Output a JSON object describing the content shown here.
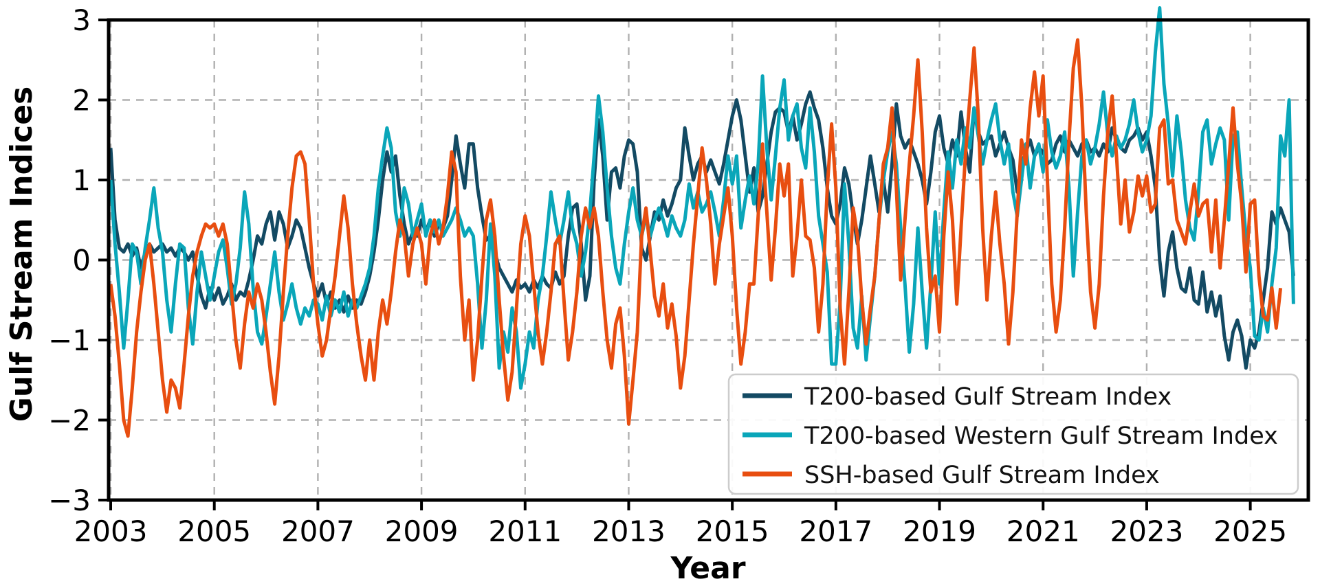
{
  "chart_data": {
    "type": "line",
    "title": "",
    "xlabel": "Year",
    "ylabel": "Gulf Stream Indices",
    "xlim": [
      2002.96,
      2026.12
    ],
    "ylim": [
      -3,
      3
    ],
    "xticks": [
      2003,
      2005,
      2007,
      2009,
      2011,
      2013,
      2015,
      2017,
      2019,
      2021,
      2023,
      2025
    ],
    "yticks": [
      -3,
      -2,
      -1,
      0,
      1,
      2,
      3
    ],
    "grid": true,
    "grid_style": "dashed",
    "legend_position": "lower right",
    "x_start_year": 2003.0,
    "x_step_years": 0.0833333,
    "series": [
      {
        "name": "T200-based Gulf Stream Index",
        "color": "#134a63",
        "values": [
          1.4,
          0.5,
          0.15,
          0.1,
          0.2,
          0.05,
          0.15,
          -0.1,
          0.1,
          0.2,
          0.1,
          0.15,
          0.2,
          0.1,
          0.15,
          0.05,
          0.15,
          0.1,
          0.0,
          0.1,
          -0.2,
          -0.45,
          -0.6,
          -0.35,
          -0.5,
          -0.35,
          -0.55,
          -0.45,
          -0.3,
          -0.5,
          -0.4,
          -0.45,
          -0.25,
          0.0,
          0.3,
          0.2,
          0.45,
          0.6,
          0.25,
          0.6,
          0.45,
          0.15,
          0.3,
          0.5,
          0.4,
          0.15,
          -0.1,
          -0.3,
          -0.45,
          -0.3,
          -0.55,
          -0.4,
          -0.6,
          -0.5,
          -0.65,
          -0.45,
          -0.6,
          -0.5,
          -0.55,
          -0.4,
          -0.2,
          0.1,
          0.5,
          1.0,
          1.35,
          1.1,
          1.3,
          0.8,
          0.45,
          0.2,
          0.35,
          0.3,
          0.5,
          0.35,
          0.5,
          0.3,
          0.45,
          0.4,
          0.55,
          1.0,
          1.55,
          1.2,
          0.9,
          1.45,
          1.45,
          0.9,
          0.55,
          0.25,
          0.3,
          0.1,
          -0.1,
          -0.2,
          -0.3,
          -0.4,
          -0.25,
          -0.35,
          -0.3,
          -0.4,
          -0.25,
          -0.35,
          -0.2,
          -0.3,
          -0.35,
          -0.15,
          -0.3,
          -0.2,
          0.3,
          0.65,
          0.7,
          0.2,
          -0.5,
          -0.2,
          1.0,
          1.75,
          1.3,
          0.5,
          1.1,
          1.15,
          0.9,
          1.3,
          1.5,
          1.45,
          1.1,
          0.15,
          0.0,
          0.3,
          0.6,
          0.5,
          0.75,
          0.55,
          0.7,
          0.9,
          1.0,
          1.65,
          1.3,
          1.0,
          1.2,
          1.3,
          1.1,
          1.25,
          1.1,
          0.95,
          1.2,
          1.5,
          1.8,
          2.0,
          1.75,
          1.3,
          0.85,
          1.15,
          0.6,
          0.8,
          1.2,
          1.6,
          1.85,
          1.9,
          1.85,
          1.6,
          1.8,
          1.5,
          1.7,
          1.95,
          2.1,
          1.9,
          1.75,
          1.4,
          0.9,
          0.55,
          0.45,
          0.7,
          1.15,
          0.95,
          0.55,
          0.2,
          0.5,
          0.9,
          1.3,
          0.95,
          0.6,
          1.0,
          0.6,
          1.2,
          1.95,
          1.55,
          1.4,
          1.5,
          1.35,
          1.2,
          1.0,
          0.7,
          1.1,
          1.6,
          1.8,
          1.4,
          1.2,
          1.5,
          1.3,
          1.85,
          1.4,
          1.1,
          1.9,
          1.6,
          1.45,
          1.5,
          1.55,
          1.3,
          1.45,
          1.6,
          1.4,
          1.25,
          0.85,
          1.2,
          1.35,
          1.5,
          1.3,
          1.4,
          1.35,
          1.2,
          1.25,
          1.45,
          1.55,
          1.35,
          1.5,
          1.4,
          1.3,
          1.45,
          1.5,
          1.35,
          1.4,
          1.3,
          1.45,
          1.35,
          1.65,
          1.5,
          1.4,
          1.35,
          1.5,
          1.55,
          1.65,
          1.5,
          1.6,
          1.3,
          0.9,
          0.0,
          -0.45,
          0.1,
          0.35,
          -0.1,
          -0.35,
          -0.4,
          -0.1,
          -0.5,
          -0.55,
          -0.15,
          -0.65,
          -0.4,
          -0.7,
          -0.45,
          -0.95,
          -1.25,
          -0.9,
          -0.75,
          -0.95,
          -1.35,
          -1.0,
          -1.1,
          -0.9,
          -0.5,
          -0.1,
          0.6,
          0.45,
          0.65,
          0.5,
          0.35,
          -0.2
        ]
      },
      {
        "name": "T200-based Western Gulf Stream Index",
        "color": "#0aa6b9",
        "values": [
          1.0,
          0.2,
          -0.4,
          -1.1,
          -0.5,
          0.2,
          0.1,
          -0.3,
          0.15,
          0.5,
          0.9,
          0.4,
          0.1,
          -0.5,
          -0.9,
          -0.3,
          0.2,
          0.15,
          -0.6,
          -1.05,
          -0.4,
          0.1,
          -0.2,
          -0.5,
          -0.2,
          0.1,
          0.25,
          -0.1,
          -0.55,
          -0.3,
          0.15,
          0.85,
          0.45,
          -0.35,
          -0.9,
          -1.05,
          -0.7,
          -0.3,
          0.1,
          -0.4,
          -0.75,
          -0.55,
          -0.3,
          -0.6,
          -0.8,
          -0.6,
          -0.7,
          -0.5,
          -0.55,
          -0.75,
          -0.45,
          -0.7,
          -0.5,
          -0.65,
          -0.4,
          -0.7,
          -0.5,
          -0.6,
          -0.45,
          -0.3,
          -0.1,
          0.3,
          0.9,
          1.3,
          1.65,
          1.4,
          0.6,
          0.3,
          0.9,
          0.7,
          0.3,
          0.5,
          0.7,
          0.3,
          0.5,
          0.35,
          0.5,
          0.3,
          0.4,
          0.5,
          0.65,
          0.5,
          0.3,
          0.4,
          0.3,
          -0.3,
          -1.1,
          -0.5,
          0.45,
          -0.2,
          -1.35,
          -0.9,
          -1.15,
          -0.6,
          -0.9,
          -1.6,
          -1.3,
          -0.9,
          -1.1,
          -0.5,
          -0.2,
          0.3,
          0.85,
          0.5,
          0.2,
          0.5,
          0.85,
          0.4,
          0.2,
          -0.2,
          0.1,
          0.6,
          1.3,
          2.05,
          1.6,
          0.9,
          0.3,
          -0.1,
          -0.3,
          0.2,
          0.6,
          0.9,
          0.5,
          0.3,
          0.55,
          0.3,
          0.5,
          0.65,
          0.5,
          0.3,
          0.55,
          0.4,
          0.3,
          0.5,
          0.95,
          0.65,
          0.85,
          0.6,
          0.7,
          0.85,
          0.6,
          0.3,
          0.75,
          1.3,
          0.95,
          1.3,
          0.4,
          0.75,
          1.05,
          0.7,
          1.2,
          2.3,
          1.4,
          0.75,
          1.3,
          1.9,
          2.25,
          1.5,
          1.8,
          1.95,
          1.4,
          1.15,
          1.9,
          1.35,
          0.55,
          0.2,
          -0.15,
          -1.3,
          -1.3,
          -0.5,
          0.95,
          0.2,
          -0.85,
          -1.1,
          -0.45,
          -1.25,
          -0.7,
          -0.2,
          0.5,
          1.0,
          1.35,
          1.6,
          1.2,
          0.4,
          -0.3,
          -1.15,
          -0.55,
          0.4,
          -0.4,
          -1.1,
          -0.3,
          0.6,
          -0.3,
          0.6,
          1.35,
          0.9,
          1.5,
          1.2,
          1.65,
          1.4,
          1.9,
          1.55,
          1.2,
          1.5,
          1.75,
          1.95,
          1.5,
          1.2,
          1.45,
          0.85,
          0.55,
          1.0,
          1.45,
          0.9,
          1.3,
          1.45,
          1.1,
          1.75,
          1.35,
          1.15,
          1.3,
          1.6,
          0.9,
          -0.2,
          0.6,
          1.3,
          1.5,
          1.2,
          1.4,
          1.7,
          2.1,
          1.55,
          1.3,
          1.55,
          1.4,
          1.5,
          1.7,
          2.0,
          1.6,
          1.35,
          1.5,
          1.8,
          2.6,
          3.15,
          2.2,
          1.7,
          1.05,
          1.8,
          1.35,
          0.75,
          0.4,
          0.25,
          0.85,
          1.6,
          1.75,
          1.2,
          1.45,
          1.65,
          1.5,
          0.5,
          1.55,
          1.6,
          0.9,
          0.3,
          -0.1,
          -0.95,
          -1.0,
          -0.6,
          -0.9,
          -0.3,
          0.15,
          1.55,
          1.3,
          2.0,
          -0.55
        ]
      },
      {
        "name": "SSH-based Gulf Stream Index",
        "color": "#e84e10",
        "values": [
          -0.3,
          -0.7,
          -1.3,
          -2.0,
          -2.2,
          -1.6,
          -0.9,
          -0.4,
          0.0,
          0.2,
          -0.3,
          -0.9,
          -1.5,
          -1.9,
          -1.5,
          -1.6,
          -1.85,
          -1.3,
          -0.7,
          -0.2,
          0.1,
          0.3,
          0.45,
          0.4,
          0.45,
          0.3,
          0.45,
          0.2,
          -0.4,
          -1.0,
          -1.35,
          -0.8,
          -0.4,
          -0.6,
          -0.3,
          -0.5,
          -0.9,
          -1.4,
          -1.8,
          -1.2,
          -0.4,
          0.3,
          0.9,
          1.3,
          1.35,
          1.2,
          0.5,
          -0.3,
          -0.8,
          -1.2,
          -1.0,
          -0.6,
          -0.2,
          0.3,
          0.8,
          0.4,
          -0.3,
          -0.8,
          -1.2,
          -1.5,
          -1.0,
          -1.5,
          -0.9,
          -0.5,
          -0.8,
          -0.4,
          0.1,
          0.5,
          0.3,
          -0.2,
          0.2,
          0.4,
          0.2,
          -0.3,
          0.3,
          0.5,
          0.2,
          0.4,
          0.8,
          1.35,
          1.1,
          -0.2,
          -1.0,
          -0.5,
          -1.5,
          -1.0,
          -0.2,
          0.5,
          0.75,
          0.3,
          -0.5,
          -1.2,
          -1.75,
          -1.4,
          -0.6,
          0.2,
          0.55,
          0.3,
          -0.3,
          -0.9,
          -1.3,
          -0.9,
          -0.4,
          0.2,
          0.3,
          -0.5,
          -1.25,
          -0.9,
          -0.4,
          0.3,
          0.65,
          0.4,
          0.65,
          0.3,
          -0.4,
          -1.0,
          -1.35,
          -0.8,
          -0.6,
          -1.2,
          -2.05,
          -1.5,
          -0.9,
          0.3,
          0.65,
          0.1,
          -0.45,
          -0.7,
          -0.3,
          -0.85,
          -0.55,
          -0.95,
          -1.6,
          -1.2,
          -0.5,
          0.2,
          0.8,
          1.4,
          1.0,
          0.45,
          -0.3,
          0.2,
          0.55,
          0.9,
          0.3,
          -0.6,
          -1.3,
          -0.9,
          -0.3,
          -0.3,
          0.55,
          1.45,
          0.6,
          -0.25,
          0.4,
          1.2,
          0.8,
          1.2,
          -0.2,
          0.3,
          1.0,
          0.3,
          0.25,
          -0.1,
          -0.9,
          -0.3,
          0.9,
          1.7,
          0.9,
          -0.6,
          -1.3,
          -0.4,
          0.65,
          0.3,
          -0.5,
          -1.05,
          -0.6,
          -0.2,
          0.5,
          1.2,
          1.4,
          1.9,
          0.9,
          -0.25,
          0.5,
          1.2,
          1.8,
          2.5,
          1.6,
          0.4,
          -0.4,
          -0.2,
          -0.9,
          0.3,
          1.1,
          0.5,
          -0.55,
          0.4,
          1.3,
          2.0,
          2.65,
          1.8,
          0.4,
          -0.5,
          0.3,
          0.85,
          0.2,
          -0.3,
          -1.05,
          -0.4,
          0.6,
          1.5,
          1.2,
          1.9,
          2.35,
          1.8,
          2.3,
          1.0,
          -0.3,
          -0.9,
          -0.5,
          0.4,
          1.5,
          2.4,
          2.75,
          1.9,
          0.6,
          -0.4,
          -0.85,
          -0.3,
          0.8,
          1.6,
          2.05,
          1.3,
          0.45,
          1.0,
          0.35,
          0.6,
          1.05,
          0.8,
          1.05,
          0.6,
          0.7,
          1.65,
          1.75,
          0.95,
          1.0,
          0.5,
          0.35,
          0.2,
          0.6,
          0.95,
          0.55,
          0.7,
          0.75,
          0.1,
          0.75,
          -0.1,
          0.5,
          1.2,
          1.9,
          1.2,
          0.7,
          -0.15,
          0.7,
          0.75,
          -0.2,
          -0.7,
          -0.75,
          -0.35,
          -0.85,
          -0.35
        ]
      }
    ],
    "colors": {
      "grid": "#b0b0b0",
      "spine": "#000000",
      "background": "#ffffff",
      "text": "#000000"
    }
  }
}
